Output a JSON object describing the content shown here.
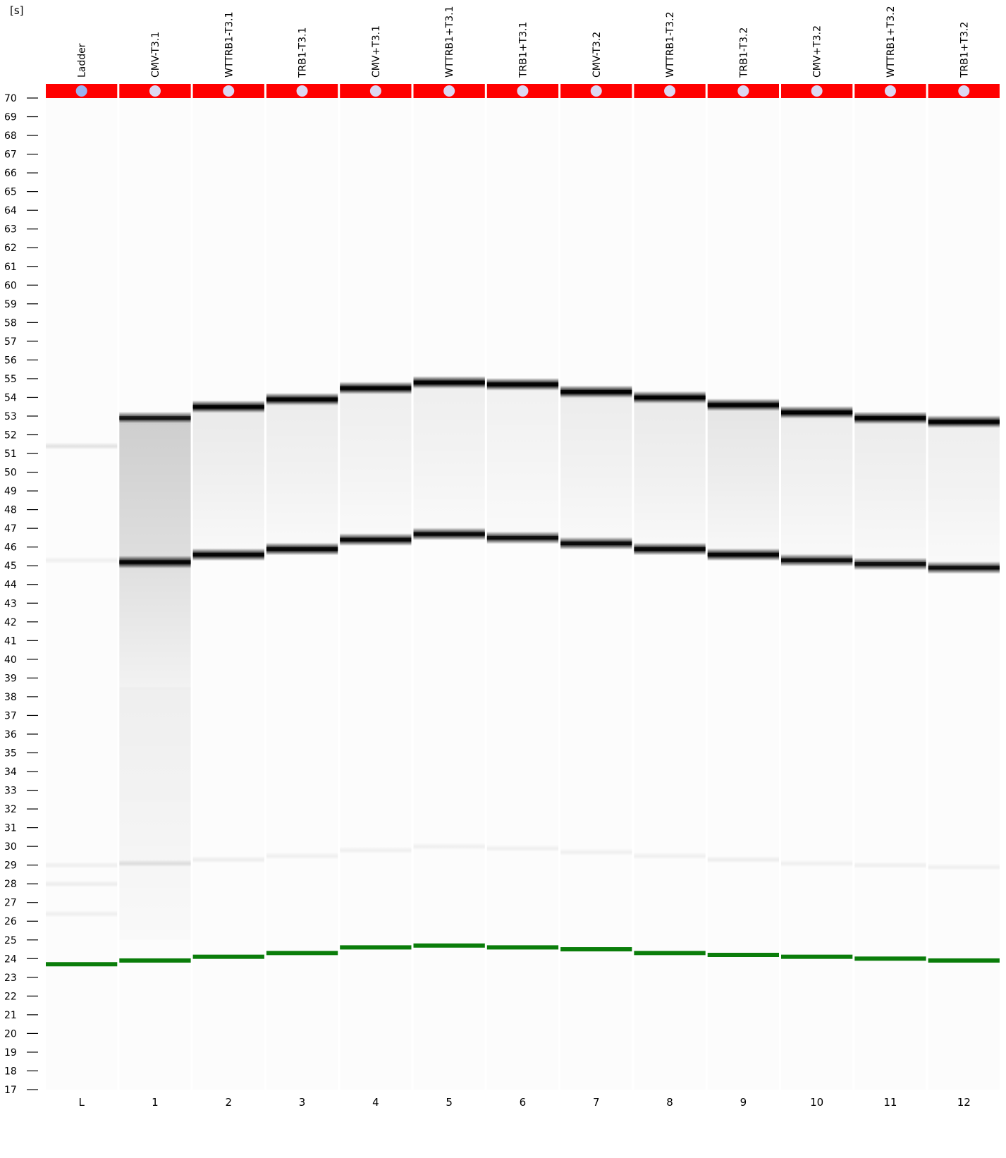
{
  "chart_data": {
    "type": "gel",
    "y_unit_label": "[s]",
    "y_range": [
      17,
      70
    ],
    "y_ticks": [
      70,
      69,
      68,
      67,
      66,
      65,
      64,
      63,
      62,
      61,
      60,
      59,
      58,
      57,
      56,
      55,
      54,
      53,
      52,
      51,
      50,
      49,
      48,
      47,
      46,
      45,
      44,
      43,
      42,
      41,
      40,
      39,
      38,
      37,
      36,
      35,
      34,
      33,
      32,
      31,
      30,
      29,
      28,
      27,
      26,
      25,
      24,
      23,
      22,
      21,
      20,
      19,
      18,
      17
    ],
    "lanes": [
      {
        "id": "L",
        "name": "Ladder",
        "marker_color": "#9ab3f0",
        "bands": [
          {
            "pos": 51.4,
            "intensity": 0.1
          },
          {
            "pos": 45.3,
            "intensity": 0.05
          },
          {
            "pos": 29.0,
            "intensity": 0.05
          },
          {
            "pos": 28.0,
            "intensity": 0.06
          },
          {
            "pos": 26.4,
            "intensity": 0.05
          }
        ],
        "smears": [],
        "marker_pos": 23.7
      },
      {
        "id": "1",
        "name": "CMV-T3.1",
        "marker_color": "#dcd8f2",
        "bands": [
          {
            "pos": 52.9,
            "intensity": 0.8
          },
          {
            "pos": 45.2,
            "intensity": 0.95
          },
          {
            "pos": 29.1,
            "intensity": 0.1
          }
        ],
        "smears": [
          {
            "from": 38.5,
            "to": 52.6,
            "intensity": 0.2
          },
          {
            "from": 25.0,
            "to": 38.5,
            "intensity": 0.06
          }
        ],
        "marker_pos": 23.9
      },
      {
        "id": "2",
        "name": "WTTRB1-T3.1",
        "marker_color": "#dcd8f2",
        "bands": [
          {
            "pos": 53.5,
            "intensity": 1.0
          },
          {
            "pos": 45.6,
            "intensity": 0.95
          },
          {
            "pos": 29.3,
            "intensity": 0.06
          }
        ],
        "smears": [
          {
            "from": 45.9,
            "to": 53.2,
            "intensity": 0.08
          }
        ],
        "marker_pos": 24.1
      },
      {
        "id": "3",
        "name": "TRB1-T3.1",
        "marker_color": "#dcd8f2",
        "bands": [
          {
            "pos": 53.9,
            "intensity": 1.0
          },
          {
            "pos": 45.9,
            "intensity": 0.95
          },
          {
            "pos": 29.5,
            "intensity": 0.05
          }
        ],
        "smears": [
          {
            "from": 46.2,
            "to": 53.6,
            "intensity": 0.07
          }
        ],
        "marker_pos": 24.3
      },
      {
        "id": "4",
        "name": "CMV+T3.1",
        "marker_color": "#dcd8f2",
        "bands": [
          {
            "pos": 54.5,
            "intensity": 1.0
          },
          {
            "pos": 46.4,
            "intensity": 0.9
          },
          {
            "pos": 29.8,
            "intensity": 0.05
          }
        ],
        "smears": [
          {
            "from": 46.7,
            "to": 54.2,
            "intensity": 0.06
          }
        ],
        "marker_pos": 24.6
      },
      {
        "id": "5",
        "name": "WTTRB1+T3.1",
        "marker_color": "#dcd8f2",
        "bands": [
          {
            "pos": 54.8,
            "intensity": 1.0
          },
          {
            "pos": 46.7,
            "intensity": 0.9
          },
          {
            "pos": 30.0,
            "intensity": 0.05
          }
        ],
        "smears": [
          {
            "from": 47.0,
            "to": 54.5,
            "intensity": 0.06
          }
        ],
        "marker_pos": 24.7
      },
      {
        "id": "6",
        "name": "TRB1+T3.1",
        "marker_color": "#dcd8f2",
        "bands": [
          {
            "pos": 54.7,
            "intensity": 1.0
          },
          {
            "pos": 46.5,
            "intensity": 0.85
          },
          {
            "pos": 29.9,
            "intensity": 0.05
          }
        ],
        "smears": [
          {
            "from": 46.8,
            "to": 54.4,
            "intensity": 0.05
          }
        ],
        "marker_pos": 24.6
      },
      {
        "id": "7",
        "name": "CMV-T3.2",
        "marker_color": "#dcd8f2",
        "bands": [
          {
            "pos": 54.3,
            "intensity": 1.0
          },
          {
            "pos": 46.2,
            "intensity": 0.9
          },
          {
            "pos": 29.7,
            "intensity": 0.05
          }
        ],
        "smears": [
          {
            "from": 46.5,
            "to": 54.0,
            "intensity": 0.07
          }
        ],
        "marker_pos": 24.5
      },
      {
        "id": "8",
        "name": "WTTRB1-T3.2",
        "marker_color": "#dcd8f2",
        "bands": [
          {
            "pos": 54.0,
            "intensity": 1.0
          },
          {
            "pos": 45.9,
            "intensity": 0.95
          },
          {
            "pos": 29.5,
            "intensity": 0.05
          }
        ],
        "smears": [
          {
            "from": 46.2,
            "to": 53.7,
            "intensity": 0.08
          }
        ],
        "marker_pos": 24.3
      },
      {
        "id": "9",
        "name": "TRB1-T3.2",
        "marker_color": "#dcd8f2",
        "bands": [
          {
            "pos": 53.6,
            "intensity": 1.0
          },
          {
            "pos": 45.6,
            "intensity": 0.95
          },
          {
            "pos": 29.3,
            "intensity": 0.06
          }
        ],
        "smears": [
          {
            "from": 45.9,
            "to": 53.3,
            "intensity": 0.1
          }
        ],
        "marker_pos": 24.2
      },
      {
        "id": "10",
        "name": "CMV+T3.2",
        "marker_color": "#dcd8f2",
        "bands": [
          {
            "pos": 53.2,
            "intensity": 1.0
          },
          {
            "pos": 45.3,
            "intensity": 0.85
          },
          {
            "pos": 29.1,
            "intensity": 0.05
          }
        ],
        "smears": [
          {
            "from": 45.6,
            "to": 52.9,
            "intensity": 0.07
          }
        ],
        "marker_pos": 24.1
      },
      {
        "id": "11",
        "name": "WTTRB1+T3.2",
        "marker_color": "#dcd8f2",
        "bands": [
          {
            "pos": 52.9,
            "intensity": 1.0
          },
          {
            "pos": 45.1,
            "intensity": 0.85
          },
          {
            "pos": 29.0,
            "intensity": 0.05
          }
        ],
        "smears": [
          {
            "from": 45.4,
            "to": 52.6,
            "intensity": 0.07
          }
        ],
        "marker_pos": 24.0
      },
      {
        "id": "12",
        "name": "TRB1+T3.2",
        "marker_color": "#dcd8f2",
        "bands": [
          {
            "pos": 52.7,
            "intensity": 1.0
          },
          {
            "pos": 44.9,
            "intensity": 0.85
          },
          {
            "pos": 28.9,
            "intensity": 0.05
          }
        ],
        "smears": [
          {
            "from": 45.2,
            "to": 52.4,
            "intensity": 0.06
          }
        ],
        "marker_pos": 23.9
      }
    ],
    "colors": {
      "header_strip": "#ff0000",
      "marker_band": "#0a7d0a",
      "band": "#000000",
      "lane_background": "#ffffff",
      "separator": "#ffffff"
    }
  }
}
